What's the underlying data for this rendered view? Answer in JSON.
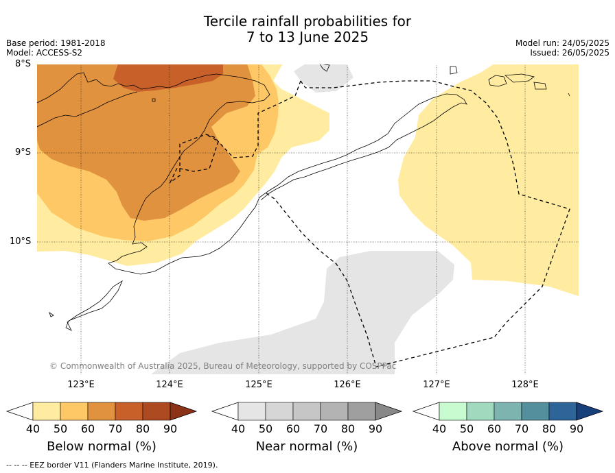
{
  "title_line1": "Tercile rainfall probabilities for",
  "title_line2": "7 to 13 June 2025",
  "base_period": "Base period: 1981-2018",
  "model": "Model: ACCESS-S2",
  "model_run": "Model run: 24/05/2025",
  "issued": "Issued: 26/05/2025",
  "lat_labels": [
    "8°S",
    "9°S",
    "10°S"
  ],
  "lon_labels": [
    "123°E",
    "124°E",
    "125°E",
    "126°E",
    "127°E",
    "128°E"
  ],
  "copyright": "© Commonwealth of Australia 2025, Bureau of Meteorology, supported by COSPPac",
  "colorbars": [
    {
      "title": "Below normal (%)",
      "ticks": [
        "40",
        "50",
        "60",
        "70",
        "80",
        "90"
      ],
      "colors": [
        "#ffffff",
        "#ffeca0",
        "#fdc865",
        "#e0923f",
        "#c8602a",
        "#ad4a22",
        "#8c3216"
      ]
    },
    {
      "title": "Near normal (%)",
      "ticks": [
        "40",
        "50",
        "60",
        "70",
        "80",
        "90"
      ],
      "colors": [
        "#ffffff",
        "#e5e5e5",
        "#d6d6d6",
        "#c6c6c6",
        "#b3b3b3",
        "#9f9f9f",
        "#888888"
      ]
    },
    {
      "title": "Above normal (%)",
      "ticks": [
        "40",
        "50",
        "60",
        "70",
        "80",
        "90"
      ],
      "colors": [
        "#ffffff",
        "#c9fbd1",
        "#a0d9bd",
        "#7db4b0",
        "#548f9e",
        "#2d6598",
        "#173f7a"
      ]
    }
  ],
  "footnote": "--  --  -- EEZ border V11 (Flanders Marine Institute, 2019)."
}
